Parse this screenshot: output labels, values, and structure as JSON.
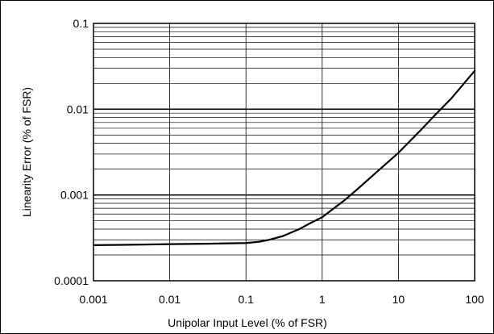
{
  "chart_data": {
    "type": "line",
    "title": "",
    "xlabel": "Unipolar Input Level (% of FSR)",
    "ylabel": "Linearity Error (% of FSR)",
    "x_scale": "log",
    "y_scale": "log",
    "xlim": [
      0.001,
      100
    ],
    "ylim": [
      0.0001,
      0.1
    ],
    "x_ticks": [
      "0.001",
      "0.01",
      "0.1",
      "1",
      "10",
      "100"
    ],
    "y_ticks": [
      "0.0001",
      "0.001",
      "0.01",
      "0.1"
    ],
    "grid": true,
    "line_color": "#000000",
    "series": [
      {
        "x": [
          0.001,
          0.003,
          0.01,
          0.03,
          0.1,
          0.15,
          0.2,
          0.3,
          0.5,
          0.7,
          1,
          2,
          3,
          5,
          10,
          20,
          30,
          50,
          100
        ],
        "y": [
          0.00026,
          0.000263,
          0.000267,
          0.00027,
          0.000275,
          0.000285,
          0.0003,
          0.00033,
          0.0004,
          0.00047,
          0.00055,
          0.00088,
          0.0012,
          0.0018,
          0.0031,
          0.0058,
          0.0085,
          0.0135,
          0.028
        ]
      }
    ]
  }
}
